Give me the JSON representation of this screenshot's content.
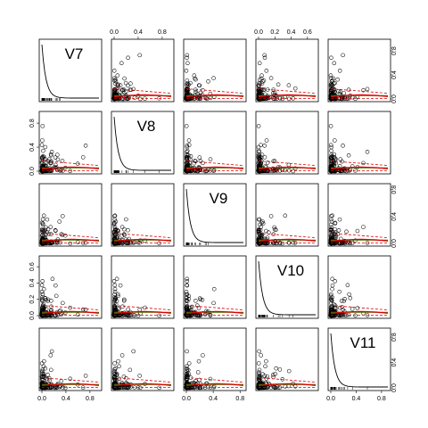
{
  "chart_data": {
    "type": "scatter",
    "variables": [
      "V7",
      "V8",
      "V9",
      "V10",
      "V11"
    ],
    "diagonal": "density",
    "smoothers": {
      "fit": "#00aa00",
      "smooth": "#dd0000",
      "spread": "#dd0000"
    },
    "axis_ticks": {
      "V7": [
        "0.0",
        "0.4",
        "0.8"
      ],
      "V8": [
        "0.0",
        "0.4",
        "0.8"
      ],
      "V9": [
        "0.0",
        "0.4",
        "0.8"
      ],
      "V10": [
        "0.0",
        "0.2",
        "0.4",
        "0.6"
      ],
      "V11": [
        "0.0",
        "0.4",
        "0.8"
      ]
    },
    "ranges": {
      "V7": [
        0,
        0.95
      ],
      "V8": [
        0,
        0.95
      ],
      "V9": [
        0,
        0.85
      ],
      "V10": [
        0,
        0.7
      ],
      "V11": [
        0,
        0.9
      ]
    },
    "top_axis_vars": [
      "V8",
      "V10"
    ],
    "bottom_axis_vars": [
      "V7",
      "V9",
      "V11"
    ],
    "left_axis_vars": [
      "V8",
      "V10"
    ],
    "right_axis_vars": [
      "V7",
      "V9",
      "V11"
    ]
  }
}
